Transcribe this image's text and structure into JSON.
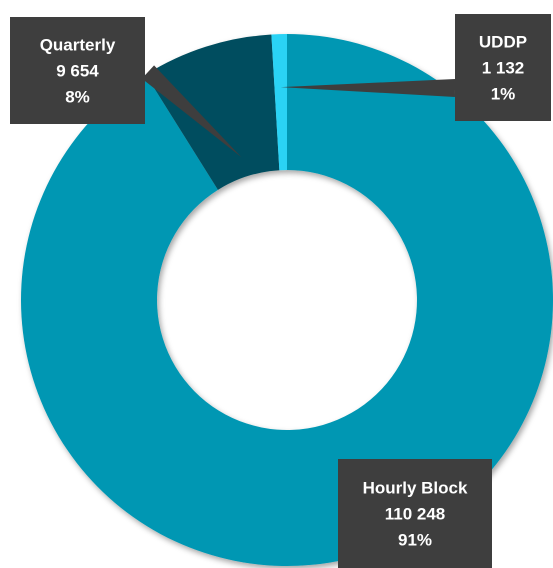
{
  "chart_data": {
    "type": "pie",
    "variant": "donut",
    "slices": [
      {
        "name": "Hourly Block",
        "value": 110248,
        "value_label": "110 248",
        "percent_label": "91%",
        "color": "#0097B3"
      },
      {
        "name": "Quarterly",
        "value": 9654,
        "value_label": "9 654",
        "percent_label": "8%",
        "color": "#004D5E"
      },
      {
        "name": "UDDP",
        "value": 1132,
        "value_label": "1 132",
        "percent_label": "1%",
        "color": "#2BD3F5"
      }
    ],
    "label_style": {
      "box_color": "#3E3E3E",
      "text_color": "#FFFFFF"
    }
  }
}
